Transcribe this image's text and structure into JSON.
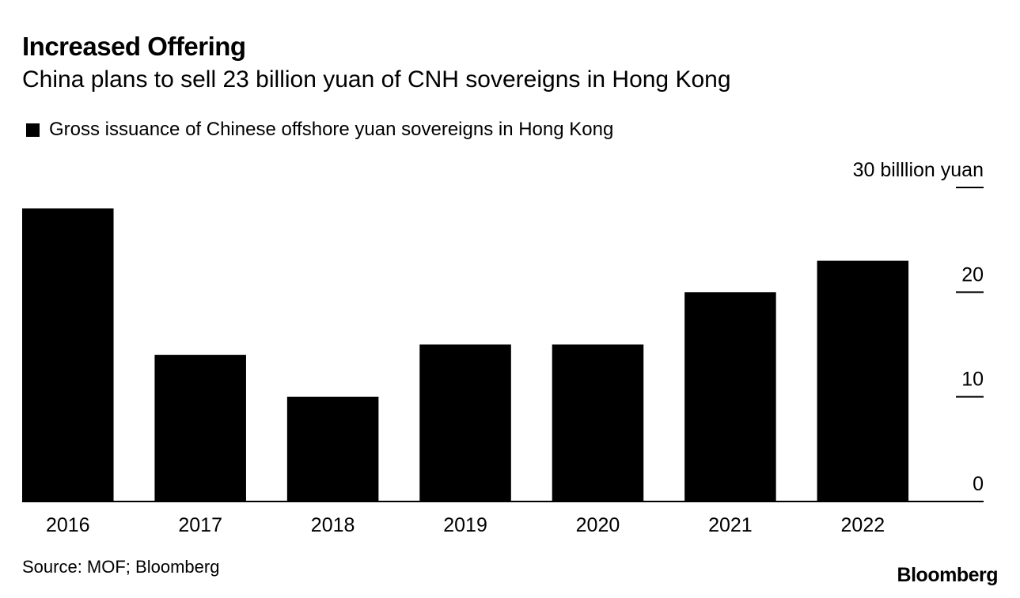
{
  "title": "Increased Offering",
  "subtitle": "China plans to sell 23 billion yuan of CNH sovereigns in Hong Kong",
  "legend_label": "Gross issuance of Chinese offshore yuan sovereigns in Hong Kong",
  "source": "Source: MOF; Bloomberg",
  "brand": "Bloomberg",
  "colors": {
    "bar": "#000000",
    "text": "#000000",
    "background": "#ffffff"
  },
  "chart_data": {
    "type": "bar",
    "title": "Increased Offering",
    "subtitle": "China plans to sell 23 billion yuan of CNH sovereigns in Hong Kong",
    "categories": [
      "2016",
      "2017",
      "2018",
      "2019",
      "2020",
      "2021",
      "2022"
    ],
    "series": [
      {
        "name": "Gross issuance of Chinese offshore yuan sovereigns in Hong Kong",
        "values": [
          28,
          14,
          10,
          15,
          15,
          20,
          23
        ]
      }
    ],
    "xlabel": "",
    "ylabel": "",
    "ylim": [
      0,
      30
    ],
    "yticks": [
      0,
      10,
      20,
      30
    ],
    "ytick_labels": [
      "0",
      "10",
      "20",
      "30 billlion yuan"
    ],
    "y_axis_side": "right",
    "grid": false,
    "legend_position": "top-left"
  }
}
